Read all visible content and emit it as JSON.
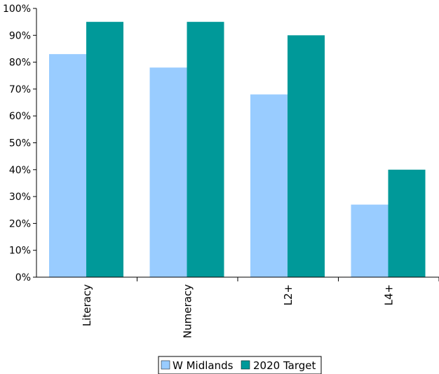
{
  "chart_data": {
    "type": "bar",
    "title": "",
    "xlabel": "",
    "ylabel": "",
    "categories": [
      "Literacy",
      "Numeracy",
      "L2+",
      "L4+"
    ],
    "series": [
      {
        "name": "W Midlands",
        "values": [
          83,
          78,
          68,
          27
        ],
        "color": "#99ccff"
      },
      {
        "name": "2020 Target",
        "values": [
          95,
          95,
          90,
          40
        ],
        "color": "#009999"
      }
    ],
    "ylim": [
      0,
      100
    ],
    "ytick_labels": [
      "0%",
      "10%",
      "20%",
      "30%",
      "40%",
      "50%",
      "60%",
      "70%",
      "80%",
      "90%",
      "100%"
    ],
    "grid": false,
    "legend_position": "bottom"
  }
}
